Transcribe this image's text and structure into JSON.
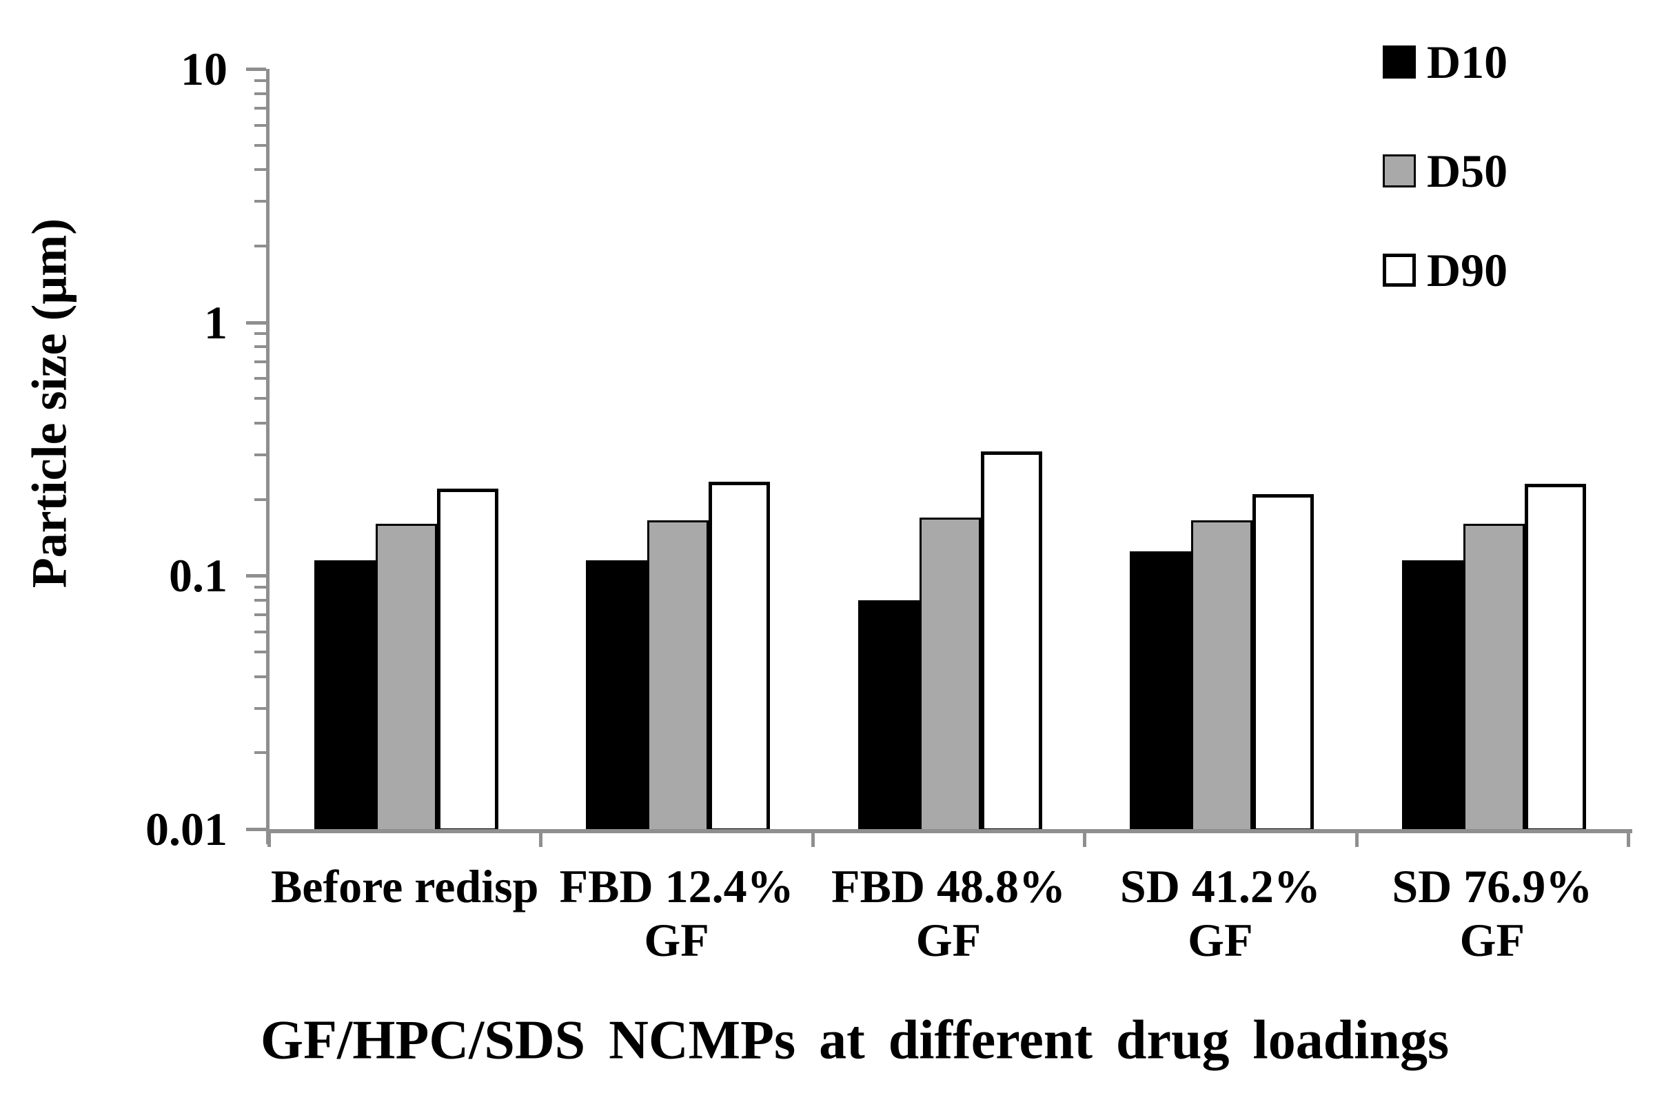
{
  "chart_data": {
    "type": "bar",
    "title": "",
    "xlabel": "GF/HPC/SDS NCMPs at different drug loadings",
    "ylabel": "Particle size (μm)",
    "y_scale": "log",
    "ylim": [
      0.01,
      10
    ],
    "y_ticks": [
      {
        "value": 0.01,
        "label": "0.01"
      },
      {
        "value": 0.1,
        "label": "0.1"
      },
      {
        "value": 1,
        "label": "1"
      },
      {
        "value": 10,
        "label": "10"
      }
    ],
    "minor_ticks_per_decade": [
      2,
      3,
      4,
      5,
      6,
      7,
      8,
      9
    ],
    "grid": false,
    "legend_position": "top-right",
    "categories": [
      {
        "lines": [
          "Before redisp"
        ]
      },
      {
        "lines": [
          "FBD 12.4%",
          "GF"
        ]
      },
      {
        "lines": [
          "FBD 48.8%",
          "GF"
        ]
      },
      {
        "lines": [
          "SD 41.2%",
          "GF"
        ]
      },
      {
        "lines": [
          "SD 76.9%",
          "GF"
        ]
      }
    ],
    "series": [
      {
        "name": "D10",
        "fill": "#000000",
        "border_color": "#000000",
        "border_px": 0,
        "values": [
          0.115,
          0.115,
          0.08,
          0.125,
          0.115
        ]
      },
      {
        "name": "D50",
        "fill": "#a9a9a9",
        "border_color": "#000000",
        "border_px": 3,
        "values": [
          0.16,
          0.165,
          0.17,
          0.165,
          0.16
        ]
      },
      {
        "name": "D90",
        "fill": "#ffffff",
        "border_color": "#000000",
        "border_px": 5,
        "values": [
          0.22,
          0.235,
          0.31,
          0.21,
          0.23
        ]
      }
    ],
    "axis_color": "#8f8f8f",
    "text_color": "#000000",
    "background": "#ffffff"
  }
}
